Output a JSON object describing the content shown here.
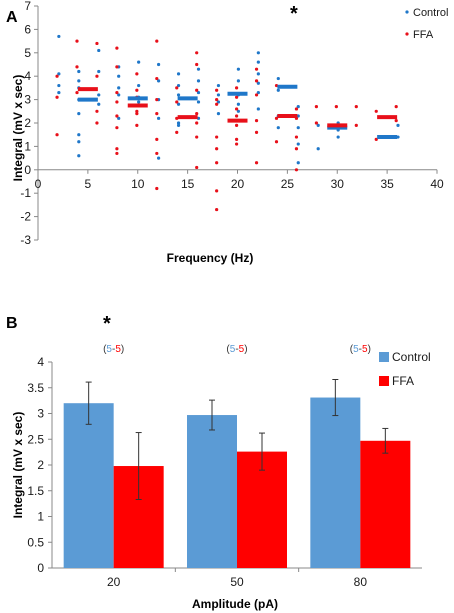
{
  "chart_data": [
    {
      "panel": "A",
      "type": "scatter",
      "title": "",
      "xlabel": "Frequency (Hz)",
      "ylabel": "Integral (mV x sec)",
      "xlim": [
        0,
        40
      ],
      "ylim": [
        -3,
        7
      ],
      "xticks": [
        0,
        5,
        10,
        15,
        20,
        25,
        30,
        35,
        40
      ],
      "yticks": [
        -3,
        -2,
        -1,
        0,
        1,
        2,
        3,
        4,
        5,
        6,
        7
      ],
      "grid": false,
      "legend_position": "top-right",
      "annotation": "*",
      "annotation_x": 25.5,
      "colors": {
        "Control": "#1f77c9",
        "FFA": "#e8101a"
      },
      "series": [
        {
          "name": "Control",
          "means": [
            [
              5,
              3.0
            ],
            [
              10,
              3.05
            ],
            [
              15,
              3.05
            ],
            [
              20,
              3.25
            ],
            [
              25,
              3.55
            ],
            [
              30,
              1.8
            ],
            [
              35,
              1.4
            ]
          ],
          "points": [
            [
              2,
              5.7
            ],
            [
              2,
              4.1
            ],
            [
              2,
              3.6
            ],
            [
              2,
              3.3
            ],
            [
              4,
              4.2
            ],
            [
              4,
              3.8
            ],
            [
              4,
              3.0
            ],
            [
              4,
              2.4
            ],
            [
              4,
              1.5
            ],
            [
              4,
              1.2
            ],
            [
              4,
              0.6
            ],
            [
              4,
              3.5
            ],
            [
              6,
              5.1
            ],
            [
              6,
              4.2
            ],
            [
              6,
              3.2
            ],
            [
              6,
              2.8
            ],
            [
              8,
              4.4
            ],
            [
              8,
              4.0
            ],
            [
              8,
              3.5
            ],
            [
              8,
              3.2
            ],
            [
              8,
              2.2
            ],
            [
              10,
              4.6
            ],
            [
              10,
              3.6
            ],
            [
              10,
              3.1
            ],
            [
              10,
              2.9
            ],
            [
              12,
              4.5
            ],
            [
              12,
              3.8
            ],
            [
              12,
              3.0
            ],
            [
              12,
              2.2
            ],
            [
              12,
              0.5
            ],
            [
              14,
              4.1
            ],
            [
              14,
              3.6
            ],
            [
              14,
              3.2
            ],
            [
              14,
              2.8
            ],
            [
              14,
              2.0
            ],
            [
              14,
              1.9
            ],
            [
              16,
              4.3
            ],
            [
              16,
              3.8
            ],
            [
              16,
              3.3
            ],
            [
              16,
              2.9
            ],
            [
              16,
              2.2
            ],
            [
              18,
              3.6
            ],
            [
              18,
              3.2
            ],
            [
              18,
              2.9
            ],
            [
              18,
              2.4
            ],
            [
              20,
              4.3
            ],
            [
              20,
              3.8
            ],
            [
              20,
              3.2
            ],
            [
              20,
              2.8
            ],
            [
              20,
              2.5
            ],
            [
              22,
              5.0
            ],
            [
              22,
              4.6
            ],
            [
              22,
              4.1
            ],
            [
              22,
              3.7
            ],
            [
              22,
              3.3
            ],
            [
              22,
              2.6
            ],
            [
              24,
              3.9
            ],
            [
              24,
              3.4
            ],
            [
              24,
              2.3
            ],
            [
              24,
              1.8
            ],
            [
              26,
              2.7
            ],
            [
              26,
              2.3
            ],
            [
              26,
              1.8
            ],
            [
              26,
              1.1
            ],
            [
              26,
              0.3
            ],
            [
              28,
              1.9
            ],
            [
              28,
              0.9
            ],
            [
              30,
              2.0
            ],
            [
              30,
              1.7
            ],
            [
              30,
              1.4
            ],
            [
              36,
              1.9
            ],
            [
              36,
              1.4
            ]
          ]
        },
        {
          "name": "FFA",
          "means": [
            [
              5,
              3.45
            ],
            [
              10,
              2.75
            ],
            [
              15,
              2.25
            ],
            [
              20,
              2.1
            ],
            [
              25,
              2.3
            ],
            [
              30,
              1.9
            ],
            [
              35,
              2.25
            ]
          ],
          "points": [
            [
              2,
              4.0
            ],
            [
              2,
              3.1
            ],
            [
              2,
              1.5
            ],
            [
              4,
              5.5
            ],
            [
              4,
              4.4
            ],
            [
              4,
              3.3
            ],
            [
              6,
              5.4
            ],
            [
              6,
              4.0
            ],
            [
              6,
              2.5
            ],
            [
              6,
              2.0
            ],
            [
              8,
              5.2
            ],
            [
              8,
              4.4
            ],
            [
              8,
              3.3
            ],
            [
              8,
              2.9
            ],
            [
              8,
              2.3
            ],
            [
              8,
              1.8
            ],
            [
              8,
              0.9
            ],
            [
              8,
              0.7
            ],
            [
              10,
              4.1
            ],
            [
              10,
              3.4
            ],
            [
              10,
              3.1
            ],
            [
              10,
              2.5
            ],
            [
              10,
              2.4
            ],
            [
              10,
              1.9
            ],
            [
              12,
              5.5
            ],
            [
              12,
              3.9
            ],
            [
              12,
              3.0
            ],
            [
              12,
              2.4
            ],
            [
              12,
              1.3
            ],
            [
              12,
              0.7
            ],
            [
              12,
              -0.8
            ],
            [
              14,
              3.5
            ],
            [
              14,
              2.9
            ],
            [
              14,
              2.2
            ],
            [
              14,
              1.6
            ],
            [
              16,
              5.0
            ],
            [
              16,
              4.5
            ],
            [
              16,
              3.4
            ],
            [
              16,
              2.4
            ],
            [
              16,
              2.0
            ],
            [
              16,
              1.4
            ],
            [
              16,
              0.1
            ],
            [
              18,
              3.4
            ],
            [
              18,
              3.0
            ],
            [
              18,
              2.8
            ],
            [
              18,
              1.4
            ],
            [
              18,
              0.9
            ],
            [
              18,
              0.3
            ],
            [
              18,
              -1.7
            ],
            [
              18,
              -0.9
            ],
            [
              20,
              3.5
            ],
            [
              20,
              3.1
            ],
            [
              20,
              2.6
            ],
            [
              20,
              2.3
            ],
            [
              20,
              1.9
            ],
            [
              20,
              1.3
            ],
            [
              20,
              1.1
            ],
            [
              22,
              4.3
            ],
            [
              22,
              3.8
            ],
            [
              22,
              3.2
            ],
            [
              22,
              2.1
            ],
            [
              22,
              1.6
            ],
            [
              22,
              0.3
            ],
            [
              24,
              3.6
            ],
            [
              24,
              2.2
            ],
            [
              24,
              1.2
            ],
            [
              26,
              2.6
            ],
            [
              26,
              2.2
            ],
            [
              26,
              1.4
            ],
            [
              26,
              0.9
            ],
            [
              26,
              0.0
            ],
            [
              28,
              2.7
            ],
            [
              28,
              2.0
            ],
            [
              30,
              2.7
            ],
            [
              30,
              1.8
            ],
            [
              32,
              2.7
            ],
            [
              32,
              1.9
            ],
            [
              34,
              2.5
            ],
            [
              34,
              1.3
            ],
            [
              36,
              2.7
            ],
            [
              36,
              2.1
            ]
          ]
        }
      ]
    },
    {
      "panel": "B",
      "type": "bar",
      "title": "",
      "xlabel": "Amplitude (pA)",
      "ylabel": "Integral (mV x sec)",
      "ylim": [
        0,
        4
      ],
      "yticks": [
        0,
        0.5,
        1,
        1.5,
        2,
        2.5,
        3,
        3.5,
        4
      ],
      "categories": [
        "20",
        "50",
        "80"
      ],
      "grid": false,
      "legend_position": "top-right",
      "annotation": "*",
      "annotation_category": "20",
      "n_labels": [
        {
          "open": "(",
          "a": "5",
          "sep": "-",
          "b": "5",
          "close": ")"
        },
        {
          "open": "(",
          "a": "5",
          "sep": "-",
          "b": "5",
          "close": ")"
        },
        {
          "open": "(",
          "a": "5",
          "sep": "-",
          "b": "5",
          "close": ")"
        }
      ],
      "colors": {
        "Control": "#5b9bd5",
        "FFA": "#ff0000"
      },
      "series": [
        {
          "name": "Control",
          "values": [
            3.2,
            2.97,
            3.31
          ],
          "errors": [
            0.41,
            0.29,
            0.35
          ]
        },
        {
          "name": "FFA",
          "values": [
            1.98,
            2.26,
            2.47
          ],
          "errors": [
            0.65,
            0.36,
            0.24
          ]
        }
      ]
    }
  ]
}
